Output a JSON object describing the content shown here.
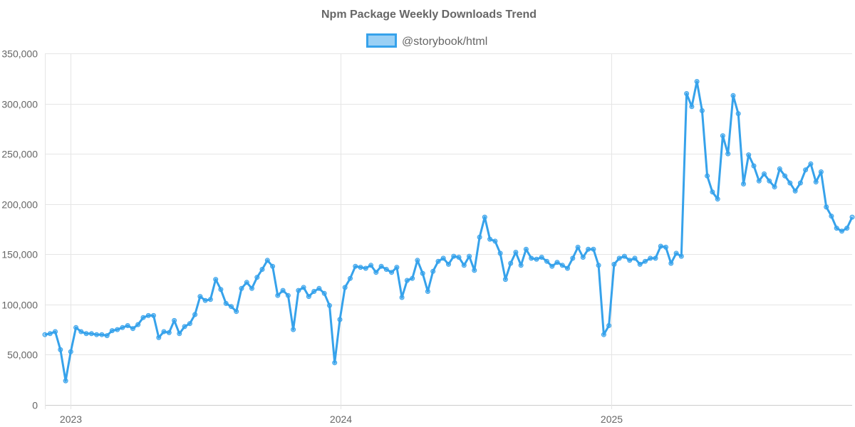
{
  "chart_data": {
    "type": "line",
    "title": "Npm Package Weekly Downloads Trend",
    "legend_position": "top",
    "grid": true,
    "ylim": [
      0,
      350000
    ],
    "y_ticks": [
      "0",
      "50,000",
      "100,000",
      "150,000",
      "200,000",
      "250,000",
      "300,000",
      "350,000"
    ],
    "x_ticks": [
      "2023",
      "2024",
      "2025"
    ],
    "colors": {
      "line": "#36a2eb",
      "fill": "rgba(54,162,235,0.5)"
    },
    "x": [
      "2022-11-27",
      "2022-12-04",
      "2022-12-11",
      "2022-12-18",
      "2022-12-25",
      "2023-01-01",
      "2023-01-08",
      "2023-01-15",
      "2023-01-22",
      "2023-01-29",
      "2023-02-05",
      "2023-02-12",
      "2023-02-19",
      "2023-02-26",
      "2023-03-05",
      "2023-03-12",
      "2023-03-19",
      "2023-03-26",
      "2023-04-02",
      "2023-04-09",
      "2023-04-16",
      "2023-04-23",
      "2023-04-30",
      "2023-05-07",
      "2023-05-14",
      "2023-05-21",
      "2023-05-28",
      "2023-06-04",
      "2023-06-11",
      "2023-06-18",
      "2023-06-25",
      "2023-07-02",
      "2023-07-09",
      "2023-07-16",
      "2023-07-23",
      "2023-07-30",
      "2023-08-06",
      "2023-08-13",
      "2023-08-20",
      "2023-08-27",
      "2023-09-03",
      "2023-09-10",
      "2023-09-17",
      "2023-09-24",
      "2023-10-01",
      "2023-10-08",
      "2023-10-15",
      "2023-10-22",
      "2023-10-29",
      "2023-11-05",
      "2023-11-12",
      "2023-11-19",
      "2023-11-26",
      "2023-12-03",
      "2023-12-10",
      "2023-12-17",
      "2023-12-24",
      "2023-12-31",
      "2024-01-07",
      "2024-01-14",
      "2024-01-21",
      "2024-01-28",
      "2024-02-04",
      "2024-02-11",
      "2024-02-18",
      "2024-02-25",
      "2024-03-03",
      "2024-03-10",
      "2024-03-17",
      "2024-03-24",
      "2024-03-31",
      "2024-04-07",
      "2024-04-14",
      "2024-04-21",
      "2024-04-28",
      "2024-05-05",
      "2024-05-12",
      "2024-05-19",
      "2024-05-26",
      "2024-06-02",
      "2024-06-09",
      "2024-06-16",
      "2024-06-23",
      "2024-06-30",
      "2024-07-07",
      "2024-07-14",
      "2024-07-21",
      "2024-07-28",
      "2024-08-04",
      "2024-08-11",
      "2024-08-18",
      "2024-08-25",
      "2024-09-01",
      "2024-09-08",
      "2024-09-15",
      "2024-09-22",
      "2024-09-29",
      "2024-10-06",
      "2024-10-13",
      "2024-10-20",
      "2024-10-27",
      "2024-11-03",
      "2024-11-10",
      "2024-11-17",
      "2024-11-24",
      "2024-12-01",
      "2024-12-08",
      "2024-12-15",
      "2024-12-22",
      "2024-12-29",
      "2025-01-05",
      "2025-01-12",
      "2025-01-19",
      "2025-01-26",
      "2025-02-02",
      "2025-02-09",
      "2025-02-16",
      "2025-02-23",
      "2025-03-02",
      "2025-03-09",
      "2025-03-16",
      "2025-03-23",
      "2025-03-30",
      "2025-04-06",
      "2025-04-13",
      "2025-04-20",
      "2025-04-27",
      "2025-05-04",
      "2025-05-11",
      "2025-05-18",
      "2025-05-25",
      "2025-06-01",
      "2025-06-08",
      "2025-06-15",
      "2025-06-22",
      "2025-06-29",
      "2025-07-06",
      "2025-07-13",
      "2025-07-20",
      "2025-07-27",
      "2025-08-03",
      "2025-08-10",
      "2025-08-17",
      "2025-08-24",
      "2025-08-31",
      "2025-09-07",
      "2025-09-14",
      "2025-09-21",
      "2025-09-28",
      "2025-10-05",
      "2025-10-12",
      "2025-10-19",
      "2025-10-26",
      "2025-11-02",
      "2025-11-09",
      "2025-11-16",
      "2025-11-23"
    ],
    "series": [
      {
        "name": "@storybook/html",
        "values": [
          70000,
          71000,
          73000,
          55000,
          24000,
          53000,
          77000,
          73000,
          71000,
          71000,
          70000,
          70000,
          69000,
          74000,
          75000,
          77000,
          79000,
          76000,
          80000,
          87000,
          89000,
          89000,
          67000,
          73000,
          72000,
          84000,
          71000,
          78000,
          81000,
          90000,
          108000,
          104000,
          105000,
          125000,
          115000,
          101000,
          98000,
          93000,
          116000,
          122000,
          116000,
          127000,
          135000,
          144000,
          138000,
          109000,
          114000,
          109000,
          75000,
          114000,
          117000,
          108000,
          113000,
          116000,
          111000,
          99000,
          42000,
          85000,
          117000,
          126000,
          138000,
          137000,
          136000,
          139000,
          132000,
          138000,
          135000,
          132000,
          137000,
          107000,
          124000,
          126000,
          144000,
          131000,
          113000,
          133000,
          143000,
          146000,
          140000,
          148000,
          147000,
          139000,
          148000,
          134000,
          167000,
          187000,
          165000,
          163000,
          151000,
          125000,
          141000,
          152000,
          139000,
          155000,
          146000,
          145000,
          147000,
          143000,
          138000,
          142000,
          139000,
          136000,
          146000,
          157000,
          147000,
          155000,
          155000,
          139000,
          70000,
          79000,
          140000,
          146000,
          148000,
          144000,
          146000,
          140000,
          143000,
          146000,
          146000,
          158000,
          157000,
          141000,
          151000,
          148000,
          310000,
          297000,
          322000,
          293000,
          228000,
          212000,
          205000,
          268000,
          250000,
          308000,
          290000,
          220000,
          249000,
          238000,
          223000,
          230000,
          223000,
          217000,
          235000,
          228000,
          221000,
          213000,
          221000,
          234000,
          240000,
          222000,
          232000,
          197000,
          188000,
          176000,
          173000,
          176000,
          187000
        ]
      }
    ]
  }
}
